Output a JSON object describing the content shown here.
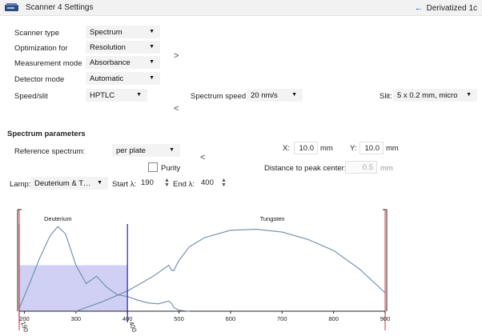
{
  "header": {
    "title": "Scanner 4 Settings",
    "back_label": "Derivatized 1c"
  },
  "settings": {
    "scanner_type": {
      "label": "Scanner type",
      "value": "Spectrum"
    },
    "optimization": {
      "label": "Optimization for",
      "value": "Resolution"
    },
    "measurement_mode": {
      "label": "Measurement mode",
      "value": "Absorbance"
    },
    "detector_mode": {
      "label": "Detector mode",
      "value": "Automatic"
    },
    "speed_slit": {
      "label": "Speed/slit",
      "value": "HPTLC"
    },
    "spectrum_speed": {
      "label": "Spectrum speed:",
      "value": "20 nm/s"
    },
    "slit": {
      "label": "Slit:",
      "value": "5 x 0.2 mm, micro"
    },
    "expand_chevron": ">",
    "collapse_chevron": "<"
  },
  "spectrum": {
    "section_title": "Spectrum parameters",
    "reference": {
      "label": "Reference spectrum:",
      "value": "per plate"
    },
    "collapse_chevron": "<",
    "x": {
      "label": "X:",
      "value": "10.0",
      "unit": "mm"
    },
    "y": {
      "label": "Y:",
      "value": "10.0",
      "unit": "mm"
    },
    "purity": {
      "label": "Purity",
      "checked": false
    },
    "distance": {
      "label": "Distance to peak center:",
      "value": "0.5",
      "unit": "mm"
    },
    "lamp": {
      "label": "Lamp:",
      "value": "Deuterium & Tun..."
    },
    "start": {
      "label": "Start λ:",
      "value": "190"
    },
    "end": {
      "label": "End λ:",
      "value": "400"
    }
  },
  "chart_data": {
    "type": "line",
    "series": [
      {
        "name": "Deuterium",
        "x": [
          190,
          210,
          230,
          250,
          265,
          280,
          300,
          320,
          340,
          360,
          380,
          400,
          420,
          440,
          460,
          480,
          485,
          490,
          500,
          520
        ],
        "y": [
          0.03,
          0.3,
          0.58,
          0.82,
          0.92,
          0.84,
          0.5,
          0.3,
          0.38,
          0.26,
          0.18,
          0.16,
          0.12,
          0.09,
          0.08,
          0.11,
          0.09,
          0.04,
          0.01,
          0.0
        ]
      },
      {
        "name": "Tungsten",
        "x": [
          300,
          350,
          400,
          450,
          480,
          485,
          490,
          495,
          500,
          520,
          550,
          600,
          650,
          700,
          750,
          800,
          850,
          900
        ],
        "y": [
          0.0,
          0.1,
          0.22,
          0.38,
          0.5,
          0.45,
          0.44,
          0.5,
          0.55,
          0.7,
          0.8,
          0.88,
          0.89,
          0.86,
          0.78,
          0.66,
          0.46,
          0.2
        ]
      }
    ],
    "x_ticks": [
      "200",
      "300",
      "400",
      "500",
      "600",
      "700",
      "800",
      "900"
    ],
    "xlim": [
      190,
      900
    ],
    "ylim": [
      0,
      1
    ],
    "selected_range": [
      190,
      400
    ],
    "range_labels": {
      "start": "190",
      "end": "400"
    },
    "colors": {
      "line": "#6e8aa6",
      "selection": "#c7c8f2",
      "marker": "#2222cc",
      "limit": "#e03030"
    }
  }
}
